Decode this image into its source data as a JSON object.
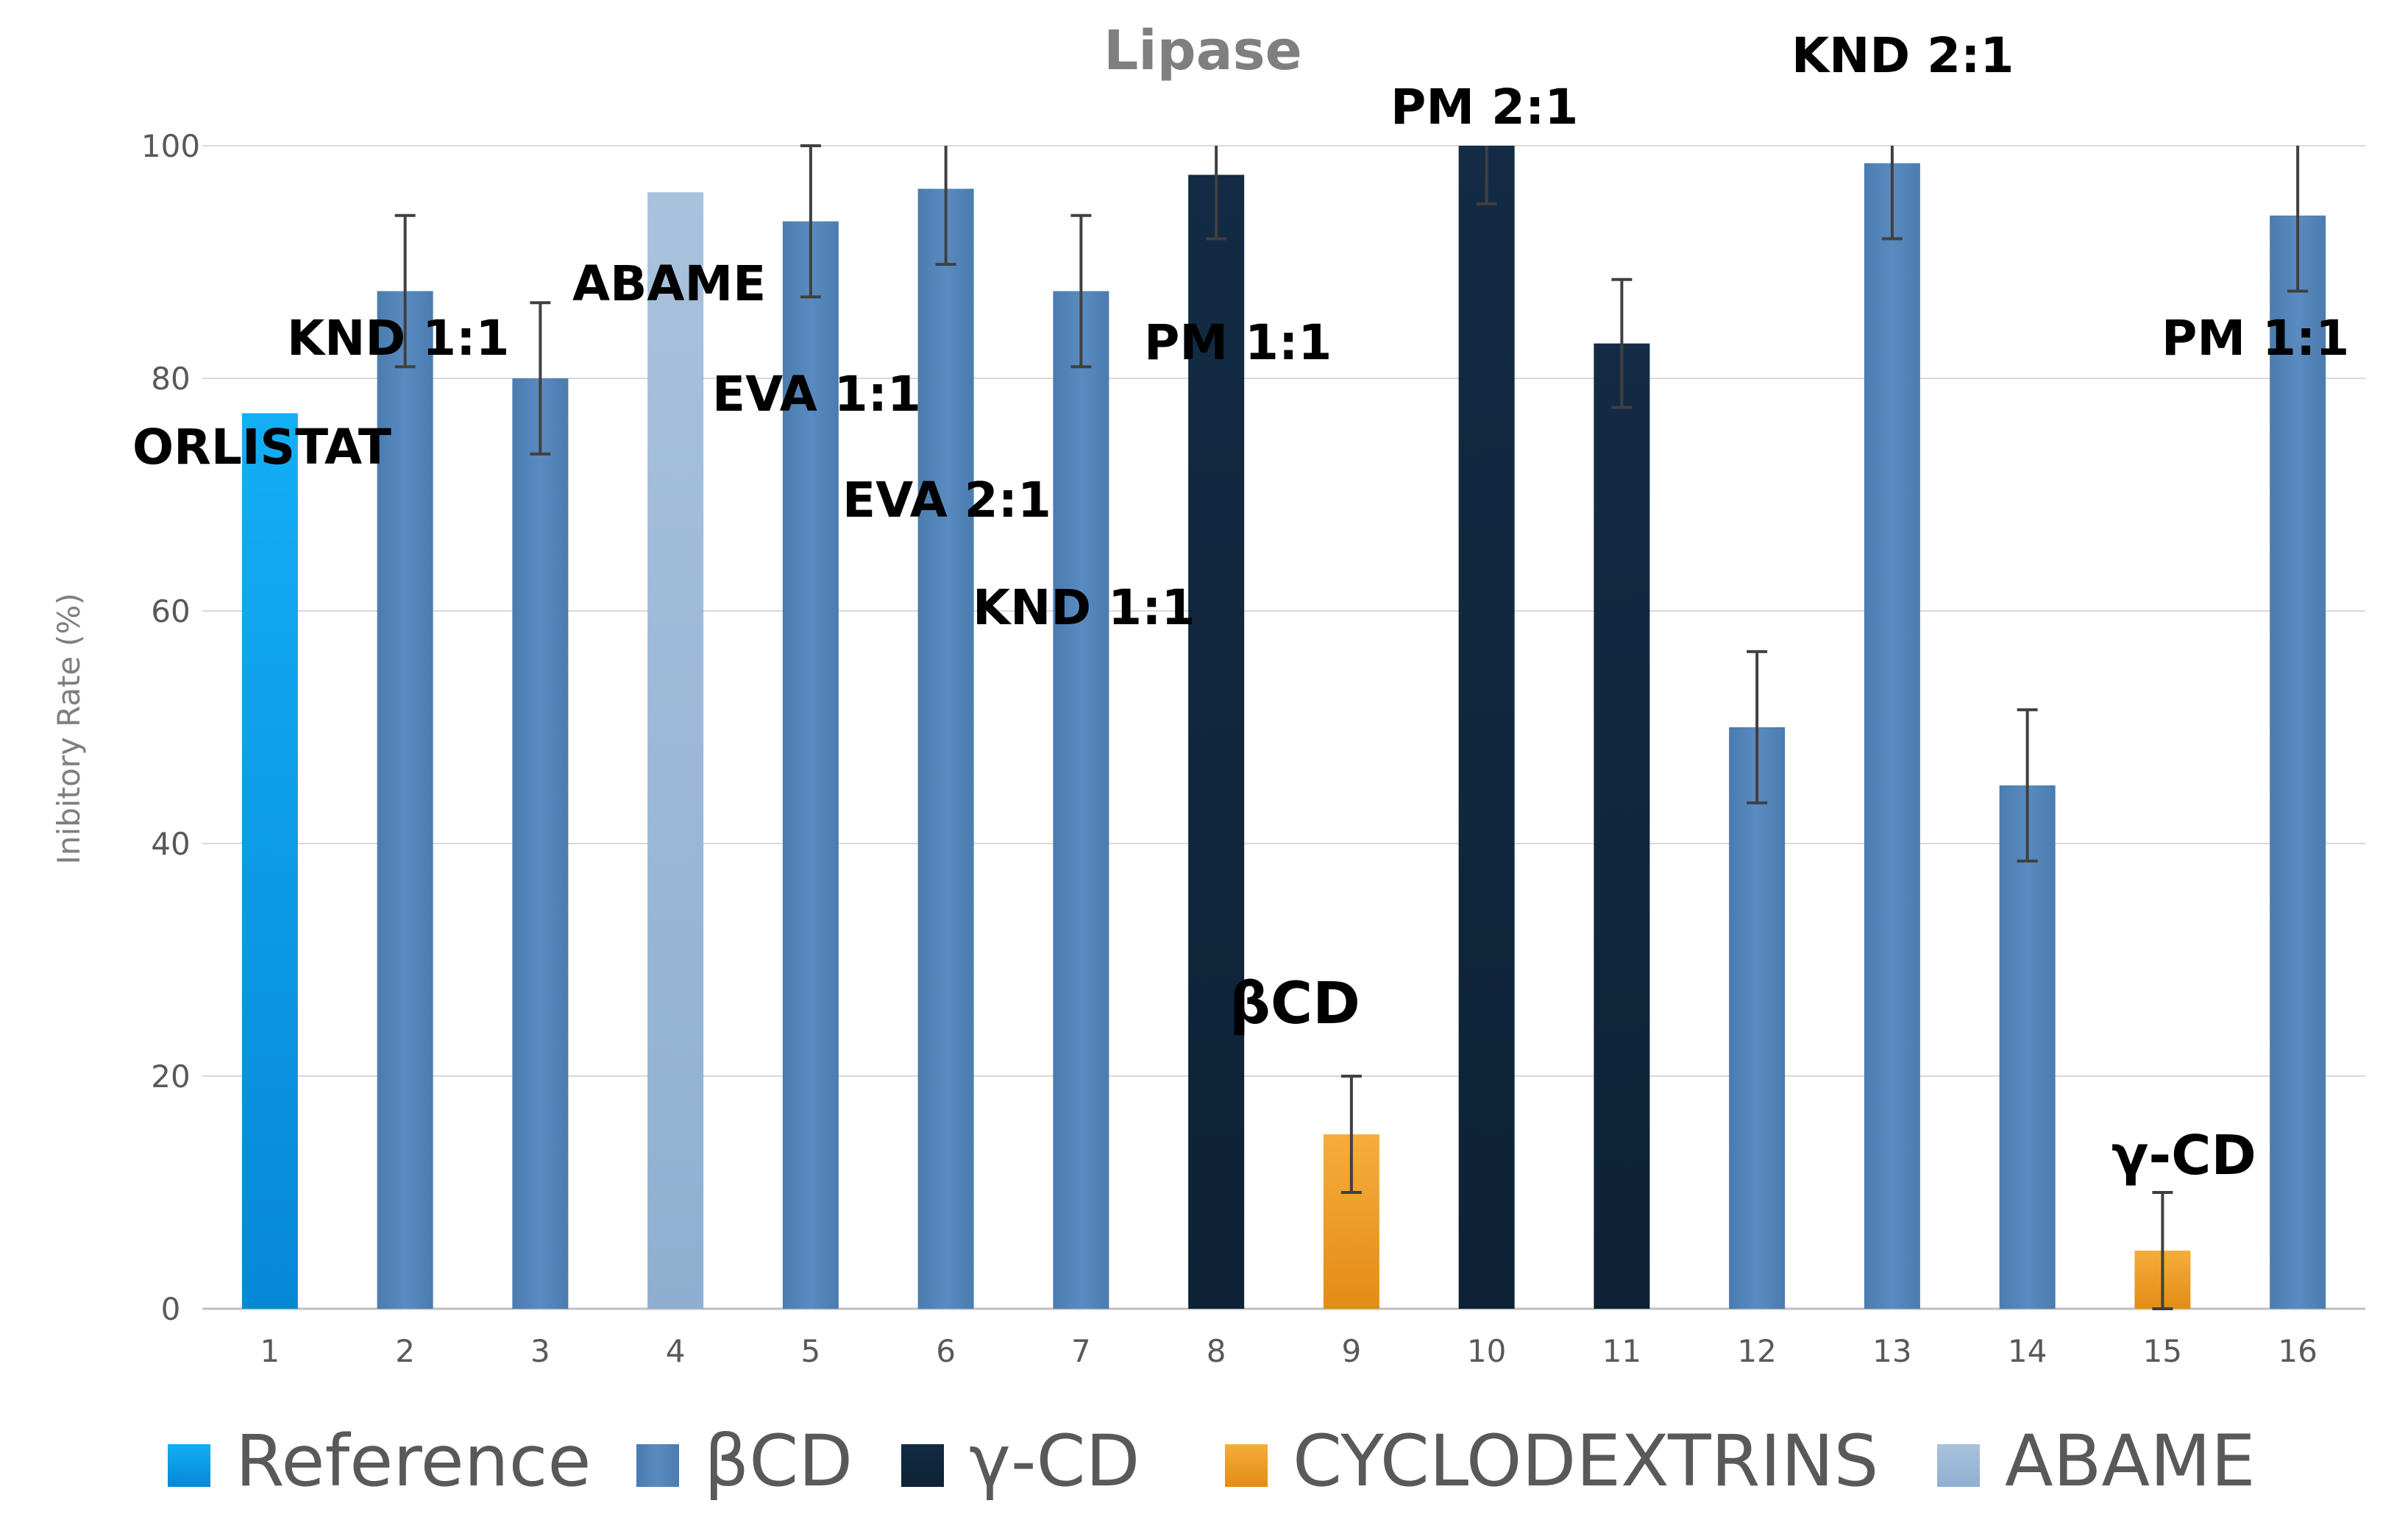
{
  "chart_data": {
    "type": "bar",
    "title": "Lipase",
    "xlabel": "",
    "ylabel": "Inibitory Rate (%)",
    "ylim": [
      0,
      100
    ],
    "yticks": [
      0,
      20,
      40,
      60,
      80,
      100
    ],
    "grid": true,
    "legend_position": "bottom",
    "categories": [
      "1",
      "2",
      "3",
      "4",
      "5",
      "6",
      "7",
      "8",
      "9",
      "10",
      "11",
      "12",
      "13",
      "14",
      "15",
      "16"
    ],
    "values": [
      77,
      87.5,
      80,
      96,
      93.5,
      96.3,
      87.5,
      97.5,
      15,
      100,
      83,
      50,
      98.5,
      45,
      5,
      94
    ],
    "errors": [
      0,
      6.5,
      6.5,
      0,
      6.5,
      6.5,
      6.5,
      5.5,
      5,
      5,
      5.5,
      6.5,
      6.5,
      6.5,
      5,
      6.5
    ],
    "groups": [
      "Reference",
      "βCD",
      "βCD",
      "ABAME",
      "βCD",
      "βCD",
      "βCD",
      "γ-CD",
      "CYCLODEXTRINS",
      "γ-CD",
      "γ-CD",
      "βCD",
      "βCD",
      "βCD",
      "CYCLODEXTRINS",
      "βCD"
    ],
    "legend": [
      {
        "name": "Reference",
        "color": "#0b9be8"
      },
      {
        "name": "βCD",
        "color": "#4f81b4"
      },
      {
        "name": "γ-CD",
        "color": "#10273d"
      },
      {
        "name": "CYCLODEXTRINS",
        "color": "#f09a2a"
      },
      {
        "name": "ABAME",
        "color": "#9ab7d5"
      }
    ],
    "annotations": [
      {
        "text": "ORLISTAT",
        "bar": 1
      },
      {
        "text": "KND 1:1",
        "bar": 2
      },
      {
        "text": "ABAME",
        "bar": 4
      },
      {
        "text": "EVA 1:1",
        "bar": 5
      },
      {
        "text": "EVA 2:1",
        "bar": 6
      },
      {
        "text": "KND 1:1",
        "bar": 7
      },
      {
        "text": "PM 1:1",
        "bar": 8
      },
      {
        "text": "βCD",
        "bar": 9
      },
      {
        "text": "PM 2:1",
        "bar": 10
      },
      {
        "text": "KND 2:1",
        "bar": 13
      },
      {
        "text": "γ-CD",
        "bar": 15
      },
      {
        "text": "PM 1:1",
        "bar": 16
      }
    ]
  }
}
